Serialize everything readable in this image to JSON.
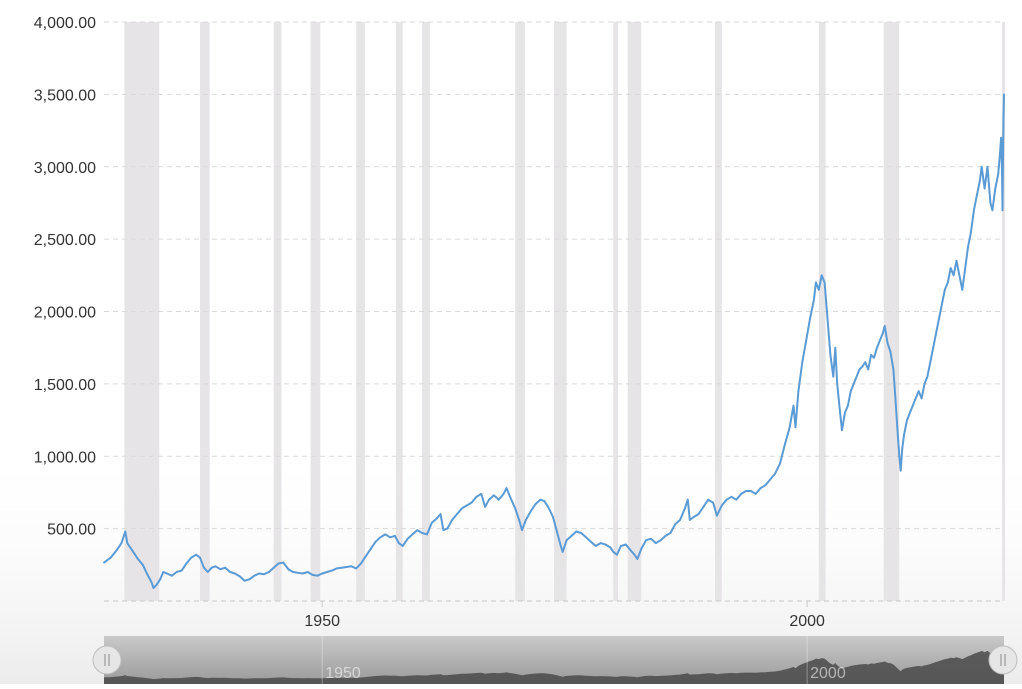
{
  "chart_data": {
    "type": "line",
    "title": "",
    "xlabel": "",
    "ylabel": "",
    "xlim": [
      1927.5,
      2020.3
    ],
    "ylim": [
      0,
      4000
    ],
    "grid": true,
    "y_ticks": [
      {
        "value": 500,
        "label": "500.00"
      },
      {
        "value": 1000,
        "label": "1,000.00"
      },
      {
        "value": 1500,
        "label": "1,500.00"
      },
      {
        "value": 2000,
        "label": "2,000.00"
      },
      {
        "value": 2500,
        "label": "2,500.00"
      },
      {
        "value": 3000,
        "label": "3,000.00"
      },
      {
        "value": 3500,
        "label": "3,500.00"
      },
      {
        "value": 4000,
        "label": "4,000.00"
      }
    ],
    "x_ticks": [
      {
        "value": 1950,
        "label": "1950"
      },
      {
        "value": 2000,
        "label": "2000"
      }
    ],
    "recessions": [
      [
        1929.6,
        1933.2
      ],
      [
        1937.4,
        1938.4
      ],
      [
        1945.0,
        1945.8
      ],
      [
        1948.8,
        1949.8
      ],
      [
        1953.5,
        1954.4
      ],
      [
        1957.6,
        1958.3
      ],
      [
        1960.3,
        1961.1
      ],
      [
        1969.9,
        1970.9
      ],
      [
        1973.9,
        1975.2
      ],
      [
        1980.0,
        1980.5
      ],
      [
        1981.5,
        1982.9
      ],
      [
        1990.5,
        1991.2
      ],
      [
        2001.2,
        2001.9
      ],
      [
        2007.9,
        2009.5
      ],
      [
        2020.1,
        2020.3
      ]
    ],
    "series": [
      {
        "color": "#5b9bd5",
        "points": [
          [
            1927.5,
            265
          ],
          [
            1928.2,
            300
          ],
          [
            1928.8,
            350
          ],
          [
            1929.3,
            400
          ],
          [
            1929.7,
            480
          ],
          [
            1929.9,
            400
          ],
          [
            1930.2,
            370
          ],
          [
            1930.6,
            330
          ],
          [
            1931.0,
            290
          ],
          [
            1931.5,
            250
          ],
          [
            1932.0,
            180
          ],
          [
            1932.4,
            130
          ],
          [
            1932.6,
            90
          ],
          [
            1932.9,
            110
          ],
          [
            1933.3,
            150
          ],
          [
            1933.6,
            200
          ],
          [
            1934.0,
            190
          ],
          [
            1934.5,
            175
          ],
          [
            1935.0,
            200
          ],
          [
            1935.5,
            210
          ],
          [
            1936.0,
            260
          ],
          [
            1936.5,
            300
          ],
          [
            1937.0,
            320
          ],
          [
            1937.4,
            300
          ],
          [
            1937.8,
            230
          ],
          [
            1938.2,
            200
          ],
          [
            1938.6,
            230
          ],
          [
            1939.0,
            240
          ],
          [
            1939.5,
            220
          ],
          [
            1940.0,
            230
          ],
          [
            1940.5,
            200
          ],
          [
            1941.0,
            190
          ],
          [
            1941.5,
            170
          ],
          [
            1942.0,
            140
          ],
          [
            1942.5,
            150
          ],
          [
            1943.0,
            175
          ],
          [
            1943.5,
            190
          ],
          [
            1944.0,
            185
          ],
          [
            1944.5,
            200
          ],
          [
            1945.0,
            230
          ],
          [
            1945.5,
            260
          ],
          [
            1946.0,
            265
          ],
          [
            1946.5,
            220
          ],
          [
            1947.0,
            200
          ],
          [
            1947.5,
            195
          ],
          [
            1948.0,
            190
          ],
          [
            1948.5,
            200
          ],
          [
            1949.0,
            180
          ],
          [
            1949.5,
            175
          ],
          [
            1950.0,
            190
          ],
          [
            1950.5,
            200
          ],
          [
            1951.0,
            210
          ],
          [
            1951.5,
            225
          ],
          [
            1952.0,
            230
          ],
          [
            1952.5,
            235
          ],
          [
            1953.0,
            240
          ],
          [
            1953.5,
            225
          ],
          [
            1954.0,
            260
          ],
          [
            1954.5,
            310
          ],
          [
            1955.0,
            360
          ],
          [
            1955.5,
            410
          ],
          [
            1956.0,
            440
          ],
          [
            1956.5,
            460
          ],
          [
            1957.0,
            440
          ],
          [
            1957.5,
            450
          ],
          [
            1957.9,
            400
          ],
          [
            1958.3,
            380
          ],
          [
            1958.8,
            430
          ],
          [
            1959.3,
            460
          ],
          [
            1959.8,
            490
          ],
          [
            1960.3,
            470
          ],
          [
            1960.8,
            460
          ],
          [
            1961.3,
            540
          ],
          [
            1961.8,
            570
          ],
          [
            1962.2,
            600
          ],
          [
            1962.5,
            490
          ],
          [
            1962.9,
            500
          ],
          [
            1963.4,
            560
          ],
          [
            1963.9,
            600
          ],
          [
            1964.4,
            640
          ],
          [
            1964.9,
            660
          ],
          [
            1965.4,
            680
          ],
          [
            1965.9,
            720
          ],
          [
            1966.4,
            740
          ],
          [
            1966.8,
            650
          ],
          [
            1967.2,
            700
          ],
          [
            1967.7,
            730
          ],
          [
            1968.2,
            700
          ],
          [
            1968.7,
            740
          ],
          [
            1969.0,
            780
          ],
          [
            1969.5,
            700
          ],
          [
            1969.9,
            640
          ],
          [
            1970.3,
            560
          ],
          [
            1970.6,
            490
          ],
          [
            1971.0,
            560
          ],
          [
            1971.5,
            620
          ],
          [
            1972.0,
            670
          ],
          [
            1972.5,
            700
          ],
          [
            1972.9,
            690
          ],
          [
            1973.3,
            650
          ],
          [
            1973.8,
            580
          ],
          [
            1974.2,
            480
          ],
          [
            1974.6,
            380
          ],
          [
            1974.8,
            340
          ],
          [
            1975.2,
            420
          ],
          [
            1975.7,
            450
          ],
          [
            1976.2,
            480
          ],
          [
            1976.7,
            470
          ],
          [
            1977.2,
            440
          ],
          [
            1977.7,
            410
          ],
          [
            1978.2,
            380
          ],
          [
            1978.7,
            400
          ],
          [
            1979.2,
            390
          ],
          [
            1979.7,
            370
          ],
          [
            1980.0,
            340
          ],
          [
            1980.4,
            320
          ],
          [
            1980.8,
            380
          ],
          [
            1981.3,
            390
          ],
          [
            1981.8,
            350
          ],
          [
            1982.2,
            320
          ],
          [
            1982.5,
            290
          ],
          [
            1982.9,
            360
          ],
          [
            1983.4,
            420
          ],
          [
            1983.9,
            430
          ],
          [
            1984.4,
            400
          ],
          [
            1984.9,
            420
          ],
          [
            1985.4,
            450
          ],
          [
            1985.9,
            470
          ],
          [
            1986.4,
            530
          ],
          [
            1986.9,
            560
          ],
          [
            1987.4,
            640
          ],
          [
            1987.7,
            700
          ],
          [
            1987.9,
            560
          ],
          [
            1988.3,
            580
          ],
          [
            1988.8,
            600
          ],
          [
            1989.3,
            650
          ],
          [
            1989.8,
            700
          ],
          [
            1990.3,
            680
          ],
          [
            1990.7,
            590
          ],
          [
            1991.2,
            660
          ],
          [
            1991.7,
            700
          ],
          [
            1992.2,
            720
          ],
          [
            1992.7,
            700
          ],
          [
            1993.2,
            740
          ],
          [
            1993.7,
            760
          ],
          [
            1994.2,
            760
          ],
          [
            1994.7,
            740
          ],
          [
            1995.2,
            780
          ],
          [
            1995.7,
            800
          ],
          [
            1996.2,
            840
          ],
          [
            1996.7,
            880
          ],
          [
            1997.2,
            950
          ],
          [
            1997.7,
            1080
          ],
          [
            1998.2,
            1200
          ],
          [
            1998.6,
            1350
          ],
          [
            1998.8,
            1200
          ],
          [
            1999.1,
            1450
          ],
          [
            1999.5,
            1650
          ],
          [
            1999.9,
            1800
          ],
          [
            2000.3,
            1950
          ],
          [
            2000.7,
            2080
          ],
          [
            2000.9,
            2200
          ],
          [
            2001.2,
            2150
          ],
          [
            2001.5,
            2250
          ],
          [
            2001.8,
            2200
          ],
          [
            2002.1,
            1950
          ],
          [
            2002.4,
            1700
          ],
          [
            2002.7,
            1550
          ],
          [
            2002.9,
            1750
          ],
          [
            2003.1,
            1500
          ],
          [
            2003.4,
            1300
          ],
          [
            2003.6,
            1180
          ],
          [
            2003.9,
            1300
          ],
          [
            2004.2,
            1350
          ],
          [
            2004.5,
            1450
          ],
          [
            2004.8,
            1500
          ],
          [
            2005.1,
            1550
          ],
          [
            2005.4,
            1600
          ],
          [
            2005.7,
            1620
          ],
          [
            2006.0,
            1650
          ],
          [
            2006.3,
            1600
          ],
          [
            2006.6,
            1700
          ],
          [
            2006.9,
            1680
          ],
          [
            2007.2,
            1750
          ],
          [
            2007.5,
            1800
          ],
          [
            2007.8,
            1850
          ],
          [
            2008.0,
            1900
          ],
          [
            2008.3,
            1780
          ],
          [
            2008.6,
            1720
          ],
          [
            2008.9,
            1600
          ],
          [
            2009.1,
            1400
          ],
          [
            2009.3,
            1200
          ],
          [
            2009.5,
            1000
          ],
          [
            2009.65,
            900
          ],
          [
            2009.8,
            1050
          ],
          [
            2010.0,
            1150
          ],
          [
            2010.3,
            1250
          ],
          [
            2010.6,
            1300
          ],
          [
            2010.9,
            1350
          ],
          [
            2011.2,
            1400
          ],
          [
            2011.5,
            1450
          ],
          [
            2011.8,
            1400
          ],
          [
            2012.1,
            1500
          ],
          [
            2012.4,
            1550
          ],
          [
            2012.7,
            1650
          ],
          [
            2013.0,
            1750
          ],
          [
            2013.3,
            1850
          ],
          [
            2013.6,
            1950
          ],
          [
            2013.9,
            2050
          ],
          [
            2014.2,
            2150
          ],
          [
            2014.5,
            2200
          ],
          [
            2014.8,
            2300
          ],
          [
            2015.1,
            2250
          ],
          [
            2015.4,
            2350
          ],
          [
            2015.7,
            2250
          ],
          [
            2016.0,
            2150
          ],
          [
            2016.3,
            2300
          ],
          [
            2016.6,
            2450
          ],
          [
            2016.9,
            2550
          ],
          [
            2017.2,
            2700
          ],
          [
            2017.5,
            2800
          ],
          [
            2017.8,
            2900
          ],
          [
            2018.0,
            3000
          ],
          [
            2018.3,
            2850
          ],
          [
            2018.6,
            3000
          ],
          [
            2018.9,
            2750
          ],
          [
            2019.1,
            2700
          ],
          [
            2019.4,
            2850
          ],
          [
            2019.7,
            2950
          ],
          [
            2019.9,
            3100
          ],
          [
            2020.0,
            3200
          ],
          [
            2020.1,
            2950
          ],
          [
            2020.15,
            2700
          ],
          [
            2020.2,
            3050
          ],
          [
            2020.25,
            3350
          ],
          [
            2020.3,
            3500
          ]
        ]
      }
    ]
  },
  "navigator": {
    "x_ticks": [
      {
        "value": 1950,
        "label": "1950"
      },
      {
        "value": 2000,
        "label": "2000"
      }
    ]
  }
}
